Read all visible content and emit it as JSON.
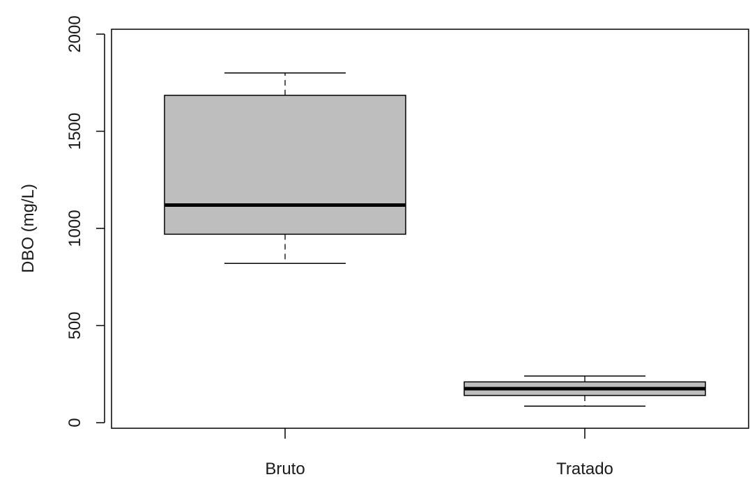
{
  "chart_data": {
    "type": "boxplot",
    "title": "",
    "xlabel": "",
    "ylabel": "DBO (mg/L)",
    "ylim": [
      0,
      2000
    ],
    "yticks": [
      0,
      500,
      1000,
      1500,
      2000
    ],
    "ytick_labels": [
      "0",
      "500",
      "1000",
      "1500",
      "2000"
    ],
    "grid": false,
    "categories": [
      "Bruto",
      "Tratado"
    ],
    "boxes": [
      {
        "whisker_low": 820,
        "q1": 970,
        "median": 1120,
        "q3": 1685,
        "whisker_high": 1800
      },
      {
        "whisker_low": 85,
        "q1": 140,
        "median": 175,
        "q3": 210,
        "whisker_high": 240
      }
    ],
    "colors": {
      "box_fill": "#bebebe",
      "stroke": "#000000"
    }
  }
}
